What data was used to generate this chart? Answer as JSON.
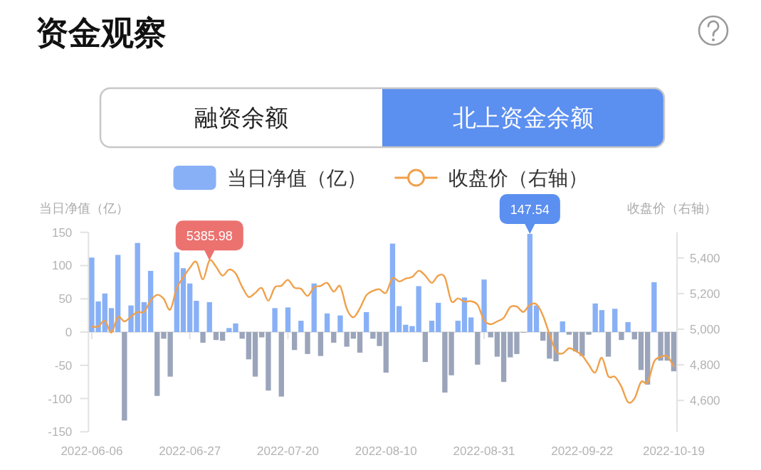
{
  "chart_data": {
    "type": "bar",
    "title": "资金观察",
    "annotations": [
      "融资余额",
      "北上资金余额"
    ],
    "ylabel": "当日净值（亿）",
    "y2label": "收盘价（右轴）",
    "categories": [
      "2022-06-06",
      null,
      null,
      null,
      null,
      null,
      null,
      null,
      null,
      null,
      null,
      null,
      null,
      null,
      null,
      "2022-06-27",
      null,
      null,
      null,
      null,
      null,
      null,
      null,
      null,
      null,
      null,
      null,
      null,
      null,
      null,
      "2022-07-20",
      null,
      null,
      null,
      null,
      null,
      null,
      null,
      null,
      null,
      null,
      null,
      null,
      null,
      null,
      "2022-08-10",
      null,
      null,
      null,
      null,
      null,
      null,
      null,
      null,
      null,
      null,
      null,
      null,
      null,
      null,
      "2022-08-31",
      null,
      null,
      null,
      null,
      null,
      null,
      null,
      null,
      null,
      null,
      null,
      null,
      null,
      null,
      "2022-09-22",
      null,
      null,
      null,
      null,
      null,
      null,
      null,
      null,
      null,
      null,
      null,
      null,
      null,
      "2022-10-19"
    ],
    "series": [
      {
        "name": "当日净值（亿）",
        "color": "#88b0f6",
        "colors": [
          "#88b0f6",
          "#88b0f6",
          "#88b0f6",
          "#88b0f6",
          "#88b0f6",
          "#9aa4ba",
          "#88b0f6",
          "#88b0f6",
          "#88b0f6",
          "#88b0f6",
          "#9aa4ba",
          "#9aa4ba",
          "#9aa4ba",
          "#88b0f6",
          "#88b0f6",
          "#88b0f6",
          "#88b0f6",
          "#9aa4ba",
          "#88b0f6",
          "#9aa4ba",
          "#9aa4ba",
          "#88b0f6",
          "#88b0f6",
          "#9aa4ba",
          "#9aa4ba",
          "#9aa4ba",
          "#9aa4ba",
          "#9aa4ba",
          "#88b0f6",
          "#9aa4ba",
          "#88b0f6",
          "#9aa4ba",
          "#88b0f6",
          "#9aa4ba",
          "#88b0f6",
          "#9aa4ba",
          "#88b0f6",
          "#9aa4ba",
          "#88b0f6",
          "#9aa4ba",
          "#9aa4ba",
          "#9aa4ba",
          "#88b0f6",
          "#9aa4ba",
          "#9aa4ba",
          "#9aa4ba",
          "#88b0f6",
          "#88b0f6",
          "#88b0f6",
          "#88b0f6",
          "#88b0f6",
          "#9aa4ba",
          "#88b0f6",
          "#88b0f6",
          "#9aa4ba",
          "#9aa4ba",
          "#88b0f6",
          "#88b0f6",
          "#88b0f6",
          "#9aa4ba",
          "#88b0f6",
          "#9aa4ba",
          "#9aa4ba",
          "#9aa4ba",
          "#9aa4ba",
          "#9aa4ba",
          "#9aa4ba",
          "#88b0f6",
          "#88b0f6",
          "#9aa4ba",
          "#9aa4ba",
          "#9aa4ba",
          "#88b0f6",
          "#9aa4ba",
          "#9aa4ba",
          "#9aa4ba",
          "#9aa4ba",
          "#88b0f6",
          "#88b0f6",
          "#9aa4ba",
          "#88b0f6",
          "#9aa4ba",
          "#88b0f6",
          "#9aa4ba",
          "#9aa4ba",
          "#9aa4ba",
          "#88b0f6",
          "#9aa4ba",
          "#9aa4ba",
          "#9aa4ba"
        ],
        "values": [
          112,
          46,
          58,
          36,
          116,
          -133,
          40,
          134,
          45,
          92,
          -96,
          -10,
          -67,
          120,
          96,
          73,
          47,
          -16,
          45,
          -12,
          -13,
          6,
          13,
          -10,
          -41,
          -67,
          -8,
          -88,
          36,
          -97,
          37,
          -27,
          17,
          -33,
          73,
          -36,
          28,
          -16,
          25,
          -22,
          -10,
          -31,
          30,
          -10,
          -21,
          -61,
          133,
          39,
          11,
          9,
          69,
          -45,
          17,
          44,
          -91,
          -65,
          17,
          52,
          22,
          -49,
          79,
          -8,
          -37,
          -75,
          -38,
          -33,
          -1,
          147.54,
          40,
          -13,
          -40,
          -44,
          16,
          -4,
          -29,
          -36,
          -4,
          43,
          33,
          -37,
          35,
          -12,
          15,
          -11,
          -57,
          -79,
          75,
          -43,
          -43,
          -59
        ],
        "value_labels": [
          null,
          null,
          null,
          null,
          null,
          null,
          null,
          null,
          null,
          null,
          null,
          null,
          null,
          null,
          null,
          null,
          null,
          null,
          null,
          null,
          null,
          null,
          null,
          null,
          null,
          null,
          null,
          null,
          null,
          null,
          null,
          null,
          null,
          null,
          null,
          null,
          null,
          null,
          null,
          null,
          null,
          null,
          null,
          null,
          null,
          null,
          null,
          null,
          null,
          null,
          null,
          null,
          null,
          null,
          null,
          null,
          null,
          null,
          null,
          null,
          null,
          null,
          null,
          null,
          null,
          null,
          null,
          "147.54",
          null,
          null,
          null,
          null,
          null,
          null,
          null,
          null,
          null,
          null,
          null,
          null,
          null,
          null,
          null,
          null,
          null,
          null,
          null,
          null,
          null,
          null
        ]
      },
      {
        "name": "收盘价（右轴）",
        "type": "line",
        "axis": "y2",
        "color": "#f0a04a",
        "values": [
          5015,
          5015,
          5048,
          4981,
          5068,
          5044,
          5071,
          5096,
          5097,
          5160,
          5193,
          5171,
          5110,
          5231,
          5291,
          5344,
          5378,
          5280,
          5385.98,
          5351,
          5301,
          5335,
          5313,
          5238,
          5181,
          5204,
          5231,
          5160,
          5235,
          5244,
          5277,
          5233,
          5227,
          5187,
          5235,
          5243,
          5260,
          5211,
          5241,
          5115,
          5067,
          5117,
          5191,
          5215,
          5224,
          5204,
          5287,
          5268,
          5284,
          5293,
          5328,
          5301,
          5260,
          5301,
          5291,
          5157,
          5173,
          5155,
          5157,
          5137,
          5051,
          5028,
          5044,
          5064,
          5124,
          5127,
          5097,
          5137,
          5140,
          5077,
          4971,
          4877,
          4864,
          4893,
          4877,
          4853,
          4801,
          4757,
          4840,
          4735,
          4733,
          4677,
          4591,
          4611,
          4704,
          4701,
          4818,
          4844,
          4848,
          4791
        ],
        "value_labels": [
          null,
          null,
          null,
          null,
          null,
          null,
          null,
          null,
          null,
          null,
          null,
          null,
          null,
          null,
          null,
          null,
          null,
          null,
          "5385.98",
          null,
          null,
          null,
          null,
          null,
          null,
          null,
          null,
          null,
          null,
          null,
          null,
          null,
          null,
          null,
          null,
          null,
          null,
          null,
          null,
          null,
          null,
          null,
          null,
          null,
          null,
          null,
          null,
          null,
          null,
          null,
          null,
          null,
          null,
          null,
          null,
          null,
          null,
          null,
          null,
          null,
          null,
          null,
          null,
          null,
          null,
          null,
          null,
          null,
          null,
          null,
          null,
          null,
          null,
          null,
          null,
          null,
          null,
          null,
          null,
          null,
          null,
          null,
          null,
          null,
          null,
          null,
          null,
          null,
          null,
          null
        ]
      }
    ],
    "ylim": [
      -150,
      150
    ],
    "yticks": [
      -150,
      -100,
      -50,
      0,
      50,
      100,
      150
    ],
    "y2lim": [
      4424,
      5544
    ],
    "y2ticks": [
      {
        "value": 4600,
        "label": "4,600"
      },
      {
        "value": 4800,
        "label": "4,800"
      },
      {
        "value": 5000,
        "label": "5,000"
      },
      {
        "value": 5200,
        "label": "5,200"
      },
      {
        "value": 5400,
        "label": "5,400"
      }
    ],
    "ref_lines": [
      {
        "axis": "y",
        "value": 0,
        "color": "#e2e2e2"
      }
    ],
    "legend": "top",
    "grid": false,
    "marker": "none",
    "line_style": "solid"
  }
}
